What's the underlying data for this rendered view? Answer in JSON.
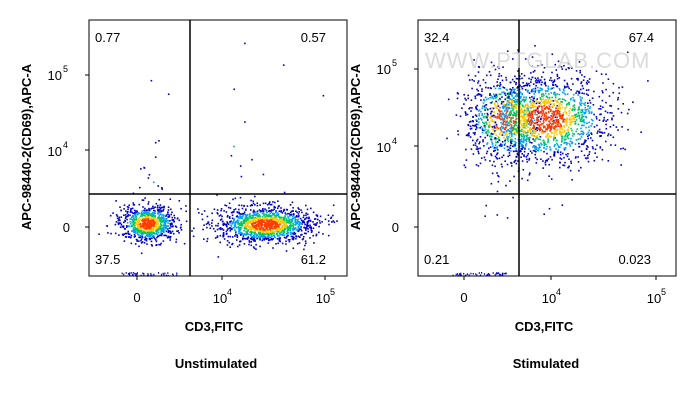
{
  "chart_data": [
    {
      "type": "scatter",
      "subtitle": "Unstimulated",
      "xlabel": "CD3,FITC",
      "ylabel": "APC-98440-2(CD69),APC-A",
      "x_ticks": [
        "0",
        "10^4",
        "10^5"
      ],
      "y_ticks": [
        "0",
        "10^4",
        "10^5"
      ],
      "quadrants": {
        "top_left": "0.77",
        "top_right": "0.57",
        "bottom_left": "37.5",
        "bottom_right": "61.2"
      },
      "populations": [
        {
          "quadrant": "bottom_left",
          "percent": 37.5
        },
        {
          "quadrant": "bottom_right",
          "percent": 61.2
        },
        {
          "quadrant": "top_left",
          "percent": 0.77
        },
        {
          "quadrant": "top_right",
          "percent": 0.57
        }
      ]
    },
    {
      "type": "scatter",
      "subtitle": "Stimulated",
      "xlabel": "CD3,FITC",
      "ylabel": "APC-98440-2(CD69),APC-A",
      "x_ticks": [
        "0",
        "10^4",
        "10^5"
      ],
      "y_ticks": [
        "0",
        "10^4",
        "10^5"
      ],
      "quadrants": {
        "top_left": "32.4",
        "top_right": "67.4",
        "bottom_left": "0.21",
        "bottom_right": "0.023"
      },
      "populations": [
        {
          "quadrant": "top_left",
          "percent": 32.4
        },
        {
          "quadrant": "top_right",
          "percent": 67.4
        },
        {
          "quadrant": "bottom_left",
          "percent": 0.21
        },
        {
          "quadrant": "bottom_right",
          "percent": 0.023
        }
      ]
    }
  ],
  "watermark": "WWW.PTGLAB.COM",
  "colors": {
    "density_low": "#0000c8",
    "density_mid": "#00c864",
    "density_high": "#ff3c00",
    "gate_line": "#000000"
  }
}
